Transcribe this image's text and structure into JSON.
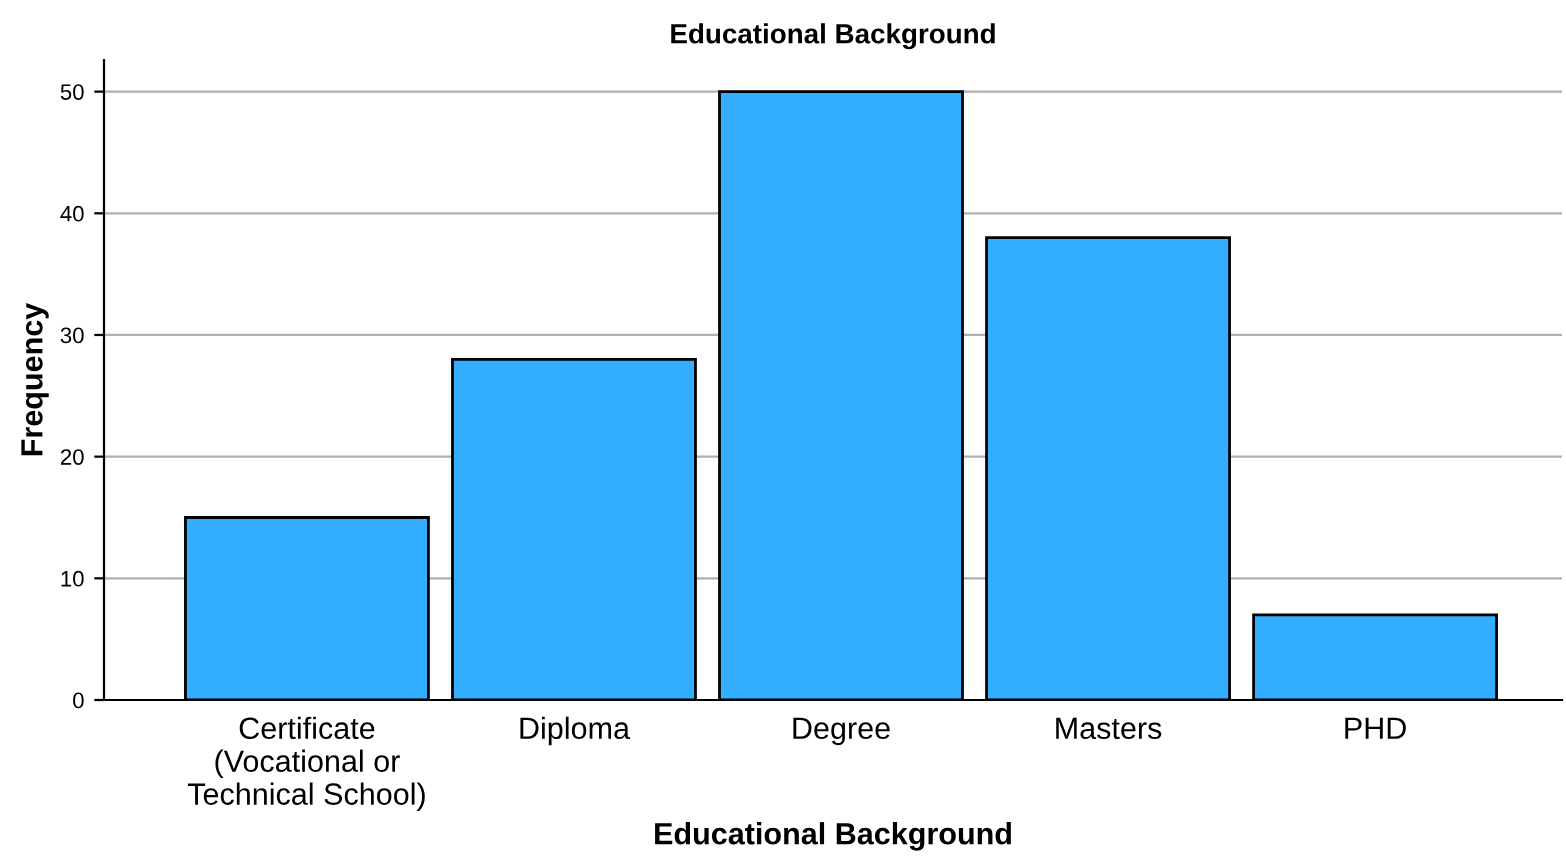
{
  "chart_data": {
    "type": "bar",
    "title": "Educational Background",
    "xlabel": "Educational Background",
    "ylabel": "Frequency",
    "categories": [
      "Certificate\n(Vocational or\nTechnical School)",
      "Diploma",
      "Degree",
      "Masters",
      "PHD"
    ],
    "values": [
      15,
      28,
      50,
      38,
      7
    ],
    "color": "#33adff",
    "ylim": [
      0,
      52.6
    ],
    "yticks": [
      0,
      10,
      20,
      30,
      40,
      50
    ],
    "grid": "y"
  }
}
